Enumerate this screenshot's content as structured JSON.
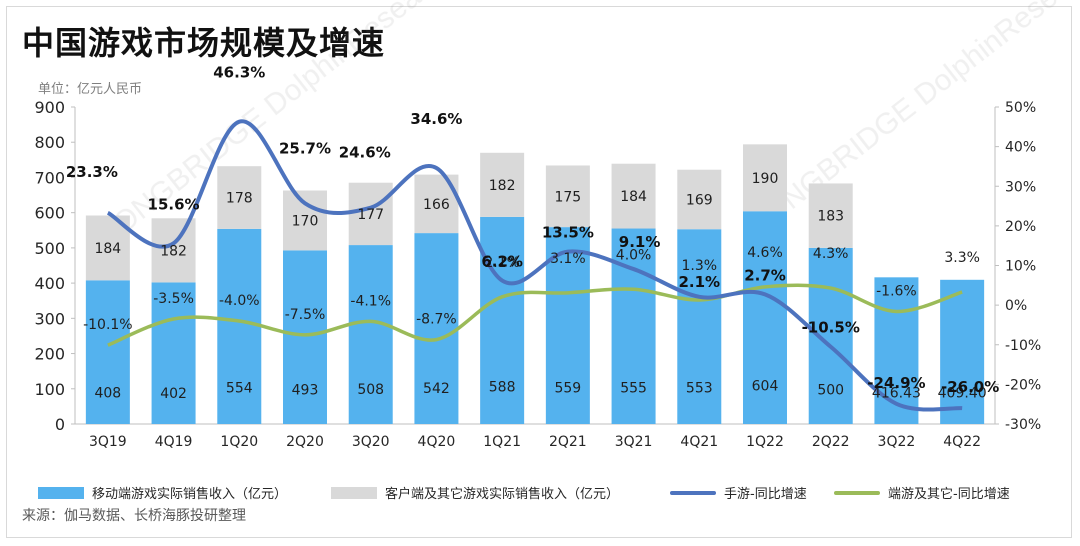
{
  "title": "中国游戏市场规模及增速",
  "unit_label": "单位：亿元人民币",
  "source": "来源：伽马数据、长桥海豚投研整理",
  "watermark": "LONGBRIDGE DolphinResearch",
  "colors": {
    "mobile_bar": "#54b2ee",
    "client_bar": "#d9d9d9",
    "mobile_line": "#4d73be",
    "client_line": "#9bbb59"
  },
  "chart_data": {
    "type": "bar",
    "categories": [
      "3Q19",
      "4Q19",
      "1Q20",
      "2Q20",
      "3Q20",
      "4Q20",
      "1Q21",
      "2Q21",
      "3Q21",
      "4Q21",
      "1Q22",
      "2Q22",
      "3Q22",
      "4Q22"
    ],
    "series": [
      {
        "name": "移动端游戏实际销售收入（亿元）",
        "type": "bar",
        "axis": "left",
        "stack": "revenue",
        "values": [
          408,
          402,
          554,
          493,
          508,
          542,
          588,
          559,
          555,
          553,
          604,
          500,
          416.43,
          409.4
        ],
        "labels": [
          "408",
          "402",
          "554",
          "493",
          "508",
          "542",
          "588",
          "559",
          "555",
          "553",
          "604",
          "500",
          "416.43",
          "409.40"
        ]
      },
      {
        "name": "客户端及其它游戏实际销售收入（亿元）",
        "type": "bar",
        "axis": "left",
        "stack": "revenue",
        "values": [
          184,
          182,
          178,
          170,
          177,
          166,
          182,
          175,
          184,
          169,
          190,
          183,
          null,
          null
        ],
        "labels": [
          "184",
          "182",
          "178",
          "170",
          "177",
          "166",
          "182",
          "175",
          "184",
          "169",
          "190",
          "183",
          "",
          ""
        ]
      },
      {
        "name": "手游-同比增速",
        "type": "line",
        "axis": "right",
        "values": [
          23.3,
          15.6,
          46.3,
          25.7,
          24.6,
          34.6,
          6.2,
          13.5,
          9.1,
          2.1,
          2.7,
          -10.5,
          -24.9,
          -26.0
        ],
        "labels": [
          "23.3%",
          "15.6%",
          "46.3%",
          "25.7%",
          "24.6%",
          "34.6%",
          "6.2%",
          "13.5%",
          "9.1%",
          "2.1%",
          "2.7%",
          "-10.5%",
          "-24.9%",
          "-26.0%"
        ]
      },
      {
        "name": "端游及其它-同比增速",
        "type": "line",
        "axis": "right",
        "values": [
          -10.1,
          -3.5,
          -4.0,
          -7.5,
          -4.1,
          -8.7,
          2.1,
          3.1,
          4.0,
          1.3,
          4.6,
          4.3,
          -1.6,
          3.3
        ],
        "labels": [
          "-10.1%",
          "-3.5%",
          "-4.0%",
          "-7.5%",
          "-4.1%",
          "-8.7%",
          "2.1%",
          "3.1%",
          "4.0%",
          "1.3%",
          "4.6%",
          "4.3%",
          "-1.6%",
          "3.3%"
        ]
      }
    ],
    "y_left": {
      "min": 0,
      "max": 900,
      "ticks": [
        "0",
        "100",
        "200",
        "300",
        "400",
        "500",
        "600",
        "700",
        "800",
        "900"
      ]
    },
    "y_right": {
      "min": -30,
      "max": 50,
      "ticks": [
        "-30%",
        "-20%",
        "-10%",
        "0%",
        "10%",
        "20%",
        "30%",
        "40%",
        "50%"
      ]
    },
    "grid": false,
    "legend": "bottom"
  }
}
